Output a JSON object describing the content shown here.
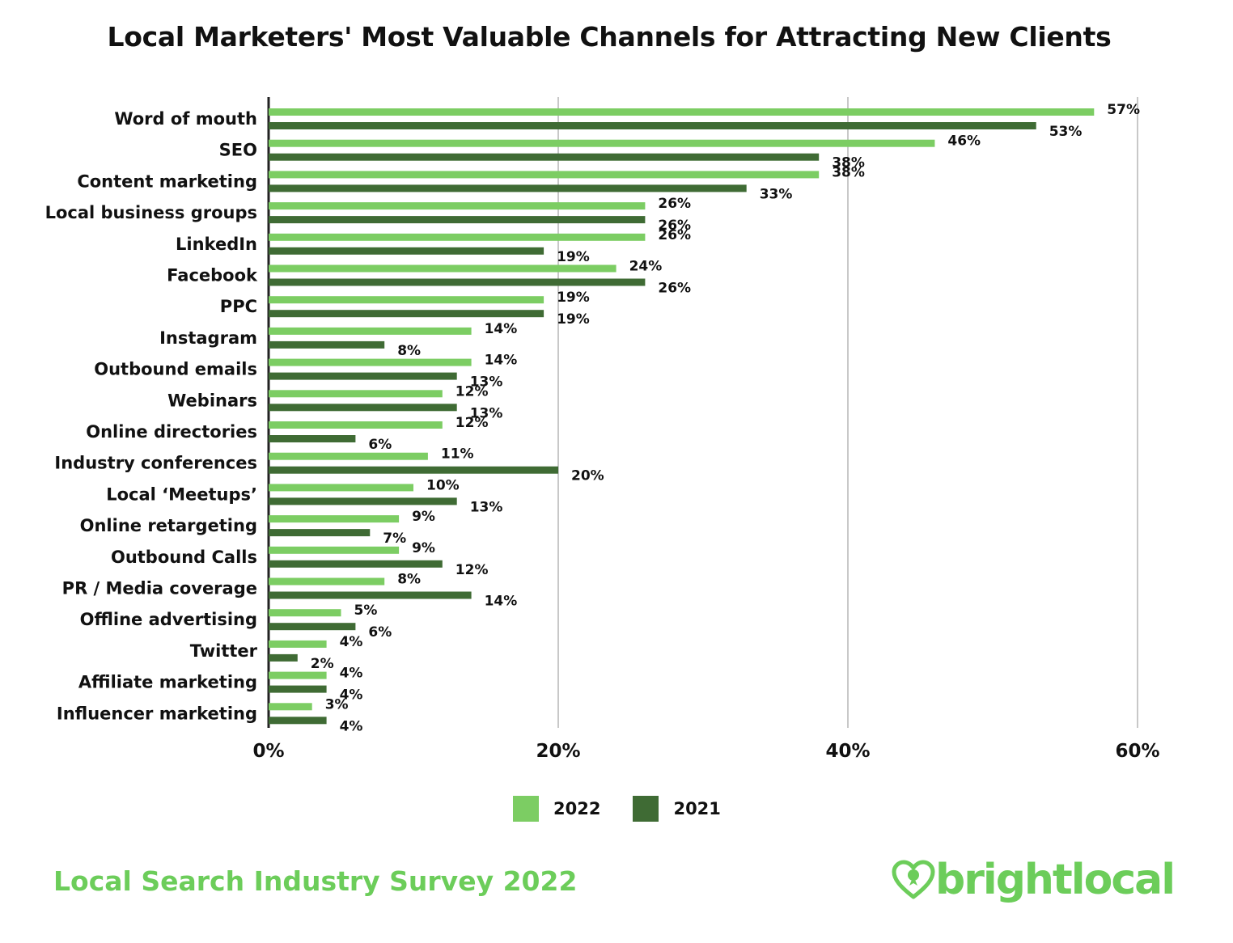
{
  "header": {
    "title": "Local Marketers' Most Valuable Channels for Attracting New Clients"
  },
  "chart_data": {
    "type": "bar",
    "orientation": "horizontal",
    "title": "Local Marketers' Most Valuable Channels for Attracting New Clients",
    "categories": [
      "Word of mouth",
      "SEO",
      "Content marketing",
      "Local business groups",
      "LinkedIn",
      "Facebook",
      "PPC",
      "Instagram",
      "Outbound emails",
      "Webinars",
      "Online directories",
      "Industry conferences",
      "Local ‘Meetups’",
      "Online retargeting",
      "Outbound Calls",
      "PR / Media coverage",
      "Offline advertising",
      "Twitter",
      "Affiliate marketing",
      "Influencer marketing"
    ],
    "series": [
      {
        "name": "2022",
        "color": "#7ccd63",
        "values": [
          57,
          46,
          38,
          26,
          26,
          24,
          19,
          14,
          14,
          12,
          12,
          11,
          10,
          9,
          9,
          8,
          5,
          4,
          4,
          3
        ]
      },
      {
        "name": "2021",
        "color": "#3f6b34",
        "values": [
          53,
          38,
          33,
          26,
          19,
          26,
          19,
          8,
          13,
          13,
          6,
          20,
          13,
          7,
          12,
          14,
          6,
          2,
          4,
          4
        ]
      }
    ],
    "xlim": [
      0,
      60
    ],
    "xticks": [
      0,
      20,
      40,
      60
    ],
    "tick_suffix": "%",
    "value_suffix": "%",
    "grid": true,
    "legend_position": "bottom-center"
  },
  "legend": {
    "items": [
      {
        "label": "2022",
        "color": "#7ccd63"
      },
      {
        "label": "2021",
        "color": "#3f6b34"
      }
    ]
  },
  "footer": {
    "survey_label": "Local Search Industry Survey 2022"
  },
  "logo": {
    "name": "brightlocal",
    "color": "#6ccd5a"
  }
}
